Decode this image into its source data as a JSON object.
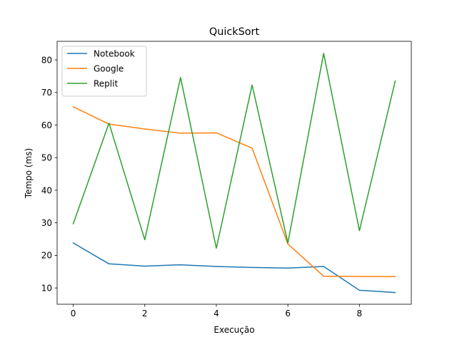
{
  "chart_data": {
    "type": "line",
    "title": "QuickSort",
    "xlabel": "Execução",
    "ylabel": "Tempo (ms)",
    "x": [
      0,
      1,
      2,
      3,
      4,
      5,
      6,
      7,
      8,
      9
    ],
    "xlim": [
      -0.45,
      9.45
    ],
    "ylim": [
      5.0,
      85.7
    ],
    "xticks": [
      0,
      2,
      4,
      6,
      8
    ],
    "yticks": [
      10,
      20,
      30,
      40,
      50,
      60,
      70,
      80
    ],
    "grid": false,
    "legend_position": "upper-left",
    "series": [
      {
        "name": "Notebook",
        "color": "#1f77b4",
        "values": [
          23.8,
          17.4,
          16.7,
          17.1,
          16.6,
          16.3,
          16.1,
          16.6,
          9.3,
          8.6
        ]
      },
      {
        "name": "Google",
        "color": "#ff7f0e",
        "values": [
          65.6,
          60.3,
          58.8,
          57.5,
          57.6,
          52.9,
          23.5,
          13.6,
          13.5,
          13.5
        ]
      },
      {
        "name": "Replit",
        "color": "#2ca02c",
        "values": [
          29.7,
          60.6,
          24.8,
          74.6,
          22.2,
          72.3,
          23.8,
          82.0,
          27.6,
          73.5
        ]
      }
    ]
  }
}
